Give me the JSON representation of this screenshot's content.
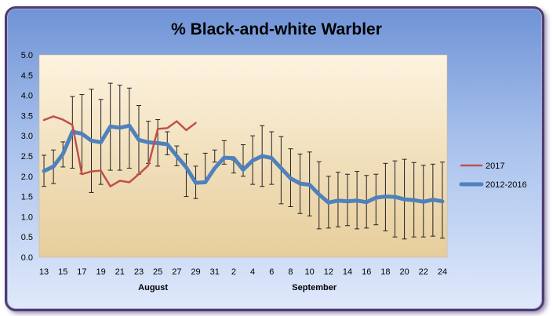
{
  "chart_data": {
    "type": "line",
    "title": "% Black-and-white Warbler",
    "ylim": [
      0,
      5
    ],
    "y_ticks": [
      "0.0",
      "0.5",
      "1.0",
      "1.5",
      "2.0",
      "2.5",
      "3.0",
      "3.5",
      "4.0",
      "4.5",
      "5.0"
    ],
    "x_tick_labels": [
      "13",
      "15",
      "17",
      "19",
      "21",
      "23",
      "25",
      "27",
      "29",
      "31",
      "2",
      "4",
      "6",
      "8",
      "10",
      "12",
      "14",
      "16",
      "18",
      "20",
      "22",
      "24"
    ],
    "month_labels": [
      {
        "label": "August",
        "at_day_index": 11.5
      },
      {
        "label": "September",
        "at_day_index": 28.5
      }
    ],
    "x_day_count": 43,
    "series": [
      {
        "name": "2017",
        "color": "#c0504d",
        "values": [
          3.39,
          3.48,
          3.4,
          3.27,
          2.05,
          2.12,
          2.14,
          1.75,
          1.89,
          1.85,
          2.05,
          2.27,
          3.17,
          3.19,
          3.36,
          3.14,
          3.32
        ]
      },
      {
        "name": "2012-2016",
        "color": "#4f81bd",
        "values": [
          2.13,
          2.24,
          2.55,
          3.1,
          3.05,
          2.88,
          2.84,
          3.23,
          3.2,
          3.25,
          2.9,
          2.84,
          2.82,
          2.79,
          2.5,
          2.22,
          1.84,
          1.85,
          2.2,
          2.46,
          2.45,
          2.16,
          2.39,
          2.5,
          2.45,
          2.2,
          1.95,
          1.82,
          1.79,
          1.55,
          1.35,
          1.4,
          1.38,
          1.4,
          1.36,
          1.47,
          1.5,
          1.49,
          1.43,
          1.41,
          1.37,
          1.42,
          1.38
        ],
        "error_low": [
          1.75,
          1.82,
          2.23,
          2.2,
          2.06,
          1.6,
          1.8,
          2.15,
          2.15,
          2.2,
          2.05,
          2.32,
          2.25,
          2.53,
          2.26,
          1.5,
          1.45,
          1.86,
          2.35,
          2.3,
          2.08,
          2.0,
          1.8,
          1.75,
          1.8,
          1.32,
          1.25,
          1.08,
          1.02,
          0.7,
          0.72,
          0.75,
          0.78,
          0.7,
          0.72,
          0.8,
          0.65,
          0.5,
          0.45,
          0.5,
          0.5,
          0.52,
          0.47
        ],
        "error_high": [
          2.52,
          2.65,
          2.85,
          3.97,
          4.02,
          4.15,
          3.9,
          4.3,
          4.25,
          4.18,
          3.75,
          3.36,
          3.4,
          3.1,
          2.75,
          2.55,
          2.25,
          2.57,
          2.65,
          2.88,
          2.4,
          2.78,
          3.0,
          3.25,
          3.1,
          2.98,
          2.68,
          2.55,
          2.6,
          2.36,
          2.0,
          2.1,
          2.05,
          2.12,
          2.02,
          2.05,
          2.32,
          2.38,
          2.42,
          2.34,
          2.27,
          2.3,
          2.35
        ]
      }
    ],
    "grid": false,
    "legend_position": "right"
  }
}
